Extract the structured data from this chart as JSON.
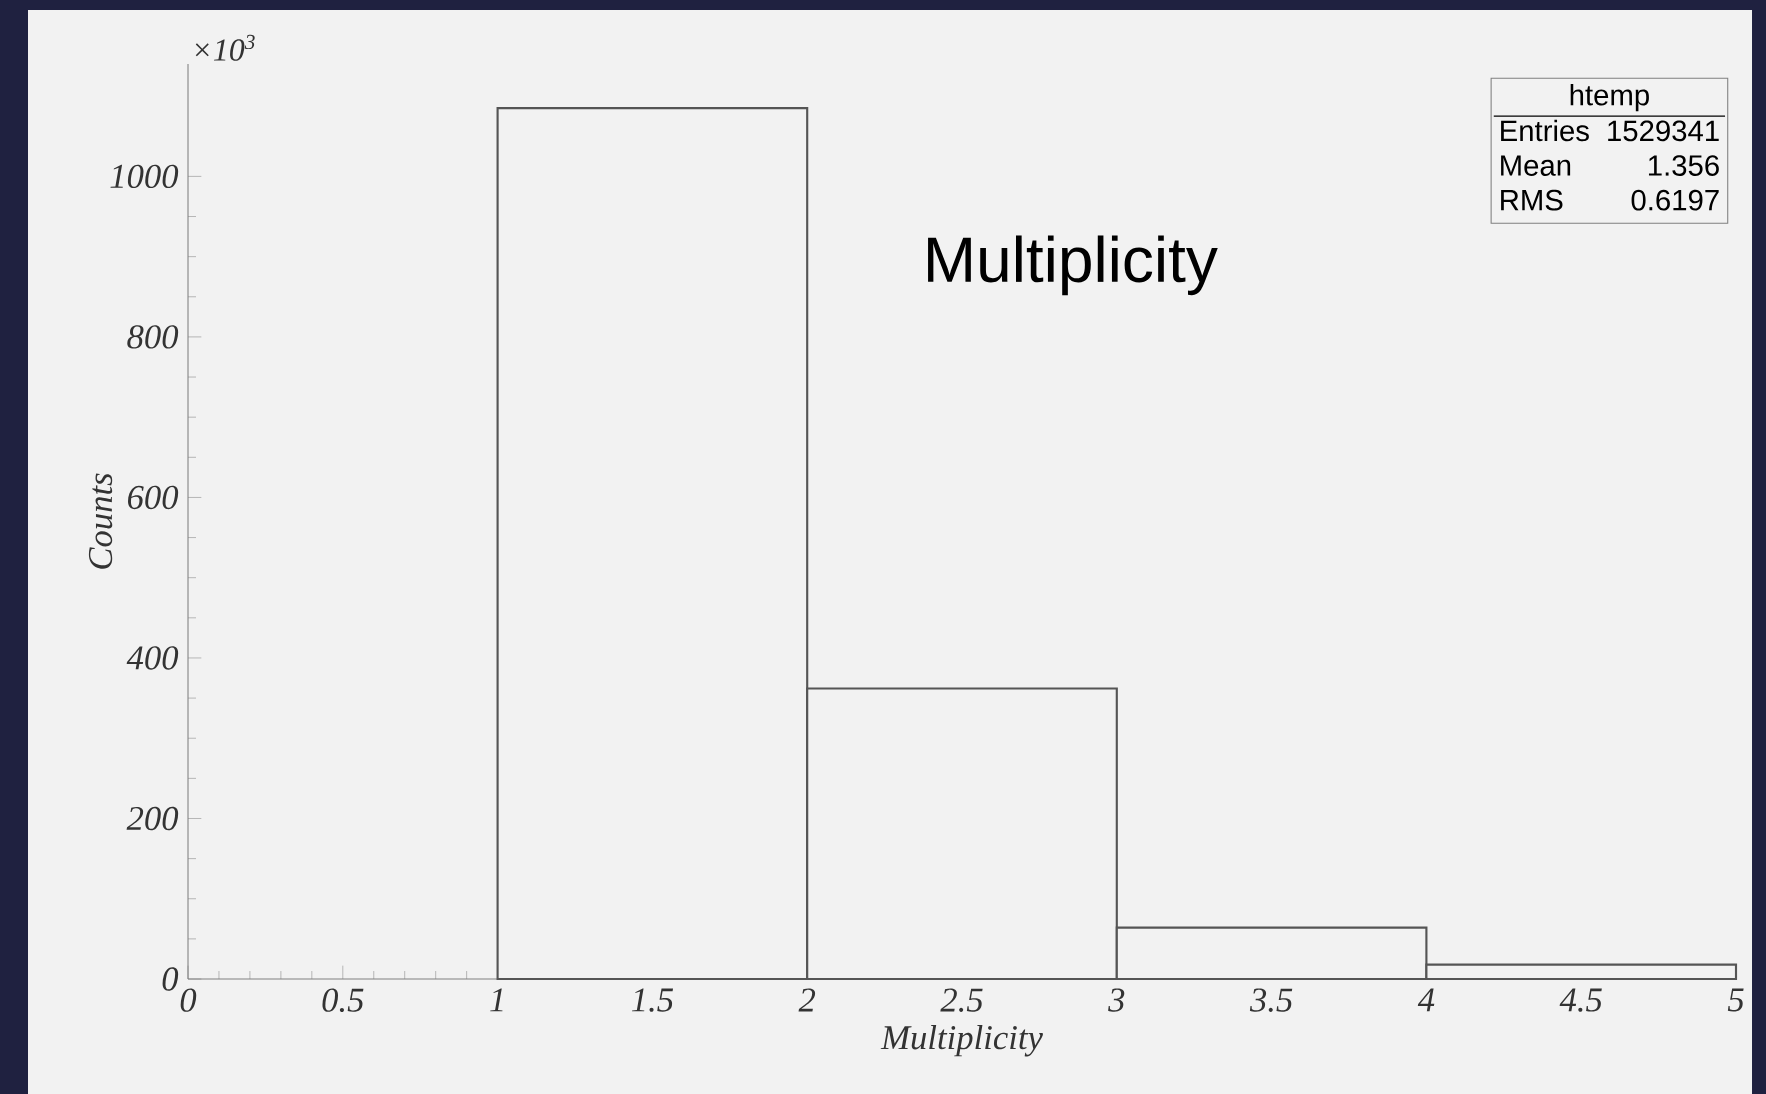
{
  "chart_data": {
    "type": "histogram",
    "title": "Multiplicity",
    "xlabel": "Multiplicity",
    "ylabel": "Counts",
    "bins": [
      1,
      2,
      3,
      4,
      5
    ],
    "values": [
      1085,
      362,
      64,
      18
    ],
    "color": "#555555",
    "xlim": [
      0,
      5
    ],
    "ylim": [
      0,
      1140
    ],
    "xticks": [
      0,
      0.5,
      1,
      1.5,
      2,
      2.5,
      3,
      3.5,
      4,
      4.5,
      5
    ],
    "yticks": [
      0,
      200,
      400,
      600,
      800,
      1000
    ],
    "annotations": [
      "×10$^{3}$",
      "htemp",
      "Entries",
      "1529341",
      "Mean",
      "1.356",
      "RMS",
      "0.6197"
    ]
  }
}
